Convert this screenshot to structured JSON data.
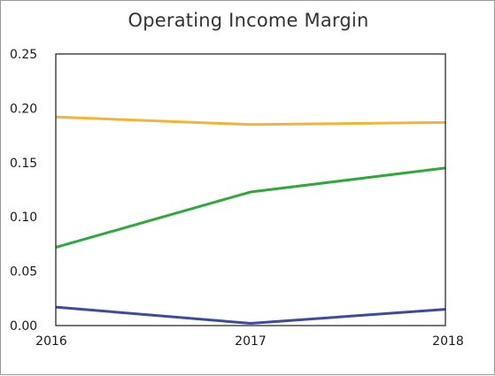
{
  "chart_data": {
    "type": "line",
    "title": "Operating Income Margin",
    "xlabel": "",
    "ylabel": "",
    "x": [
      "2016",
      "2017",
      "2018"
    ],
    "ylim": [
      0,
      0.25
    ],
    "yticks": [
      "0.00",
      "0.05",
      "0.10",
      "0.15",
      "0.20",
      "0.25"
    ],
    "grid": false,
    "legend": "none",
    "series": [
      {
        "color": "#f5b335",
        "values": [
          0.192,
          0.185,
          0.187
        ]
      },
      {
        "color": "#2fa83c",
        "values": [
          0.072,
          0.123,
          0.145
        ]
      },
      {
        "color": "#3e4a9e",
        "values": [
          0.017,
          0.002,
          0.015
        ]
      }
    ]
  }
}
